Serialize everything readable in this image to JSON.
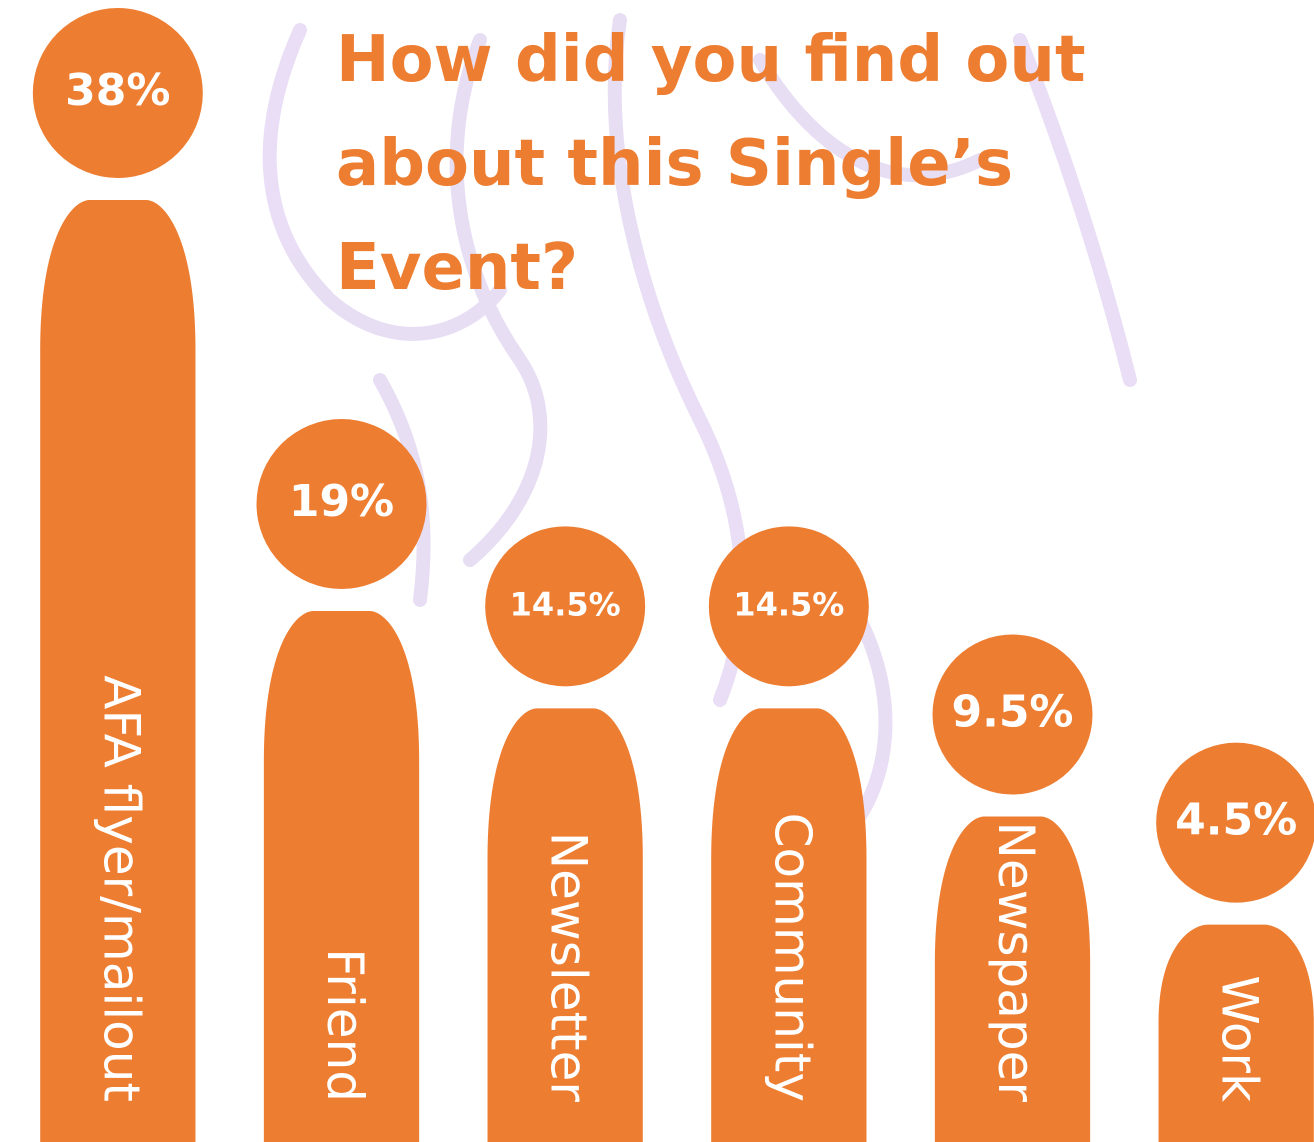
{
  "chart_data": {
    "type": "bar",
    "title": "How did you find out about this Single’s Event?",
    "categories": [
      "AFA flyer/mailout",
      "Friend",
      "Newsletter",
      "Community",
      "Newspaper",
      "Work"
    ],
    "values": [
      38,
      19,
      14.5,
      14.5,
      9.5,
      4.5
    ],
    "value_labels": [
      "38%",
      "19%",
      "14.5%",
      "14.5%",
      "9.5%",
      "4.5%"
    ],
    "color": "#ED7D31"
  }
}
